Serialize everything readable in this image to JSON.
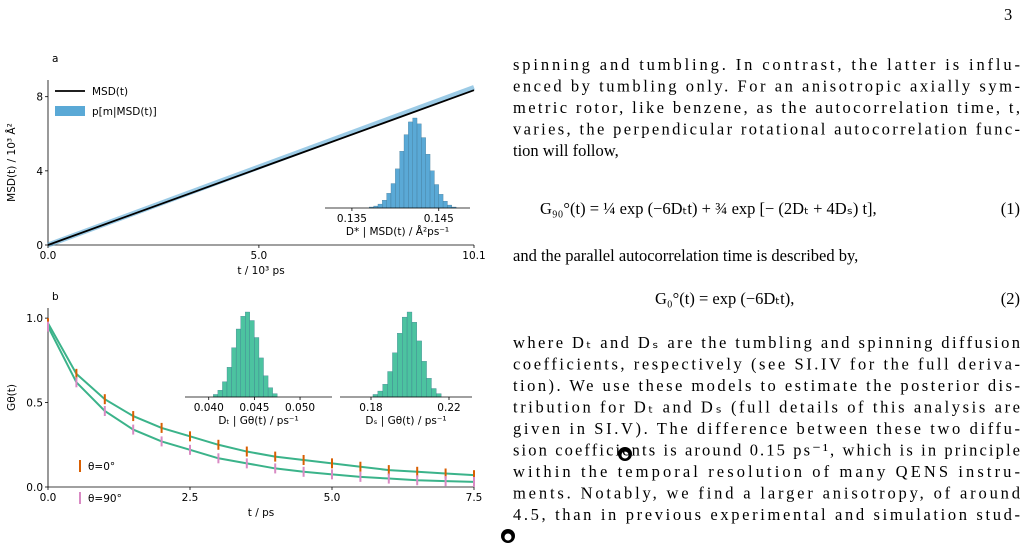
{
  "page_number": "3",
  "chart_data": [
    {
      "type": "line",
      "panel_label": "a",
      "xlabel": "t / 10³ ps",
      "ylabel": "MSD(t) / 10³ Å²",
      "x": [
        0,
        10.1
      ],
      "series": [
        {
          "name": "MSD(t)",
          "color": "#000000",
          "style": "line",
          "values": [
            0,
            8.35
          ]
        },
        {
          "name": "p[m|MSD(t)]",
          "color": "#5aa9d6",
          "style": "band",
          "values": [
            0,
            8.5
          ]
        }
      ],
      "xlim": [
        0,
        10.1
      ],
      "ylim": [
        0,
        8.9
      ],
      "xticks": [
        {
          "value": 0,
          "label": "0.0"
        },
        {
          "value": 5,
          "label": "5.0"
        },
        10.1
      ],
      "yticks": [
        0,
        4,
        8
      ],
      "insets": [
        {
          "type": "histogram",
          "xlabel": "D* | MSD(t) / Å²ps⁻¹",
          "color": "#5aa9d6",
          "xlim": [
            0.1319,
            0.1486
          ],
          "xticks": [
            0.135,
            0.145
          ],
          "bins": [
            0.137,
            0.1375,
            0.138,
            0.1385,
            0.139,
            0.1395,
            0.14,
            0.1405,
            0.141,
            0.1415,
            0.142,
            0.1425,
            0.143,
            0.1435,
            0.144,
            0.1445,
            0.145,
            0.1455,
            0.146,
            0.1465,
            0.147
          ],
          "counts": [
            1,
            2,
            4,
            8,
            15,
            25,
            40,
            58,
            75,
            88,
            92,
            86,
            72,
            55,
            38,
            24,
            14,
            7,
            3,
            1
          ]
        }
      ]
    },
    {
      "type": "line",
      "panel_label": "b",
      "xlabel": "t / ps",
      "ylabel": "Gθ(t)",
      "fit_color": "#3bb38a",
      "x": [
        0,
        0.5,
        1,
        1.5,
        2,
        2.5,
        3,
        3.5,
        4,
        4.5,
        5,
        5.5,
        6,
        6.5,
        7,
        7.5
      ],
      "series": [
        {
          "name": "θ=0°",
          "color": "#d95f02",
          "values": [
            0.97,
            0.67,
            0.52,
            0.42,
            0.35,
            0.3,
            0.25,
            0.21,
            0.18,
            0.16,
            0.14,
            0.12,
            0.1,
            0.09,
            0.08,
            0.07
          ]
        },
        {
          "name": "θ=90°",
          "color": "#d98ac4",
          "values": [
            0.95,
            0.62,
            0.45,
            0.34,
            0.27,
            0.22,
            0.17,
            0.14,
            0.11,
            0.09,
            0.075,
            0.06,
            0.05,
            0.04,
            0.035,
            0.03
          ]
        }
      ],
      "xlim": [
        0,
        7.5
      ],
      "ylim": [
        0,
        1.06
      ],
      "xticks": [
        {
          "value": 0,
          "label": "0.0"
        },
        2.5,
        {
          "value": 5,
          "label": "5.0"
        },
        7.5
      ],
      "yticks": [
        {
          "value": 0,
          "label": "0.0"
        },
        0.5,
        {
          "value": 1,
          "label": "1.0"
        }
      ],
      "insets": [
        {
          "type": "histogram",
          "xlabel": "Dₜ | Gθ(t) / ps⁻¹",
          "color": "#4cc3a0",
          "xlim": [
            0.0374,
            0.0535
          ],
          "xticks": [
            {
              "value": 0.04,
              "label": "0.040"
            },
            0.045,
            {
              "value": 0.05,
              "label": "0.050"
            }
          ],
          "bins": [
            0.0405,
            0.041,
            0.0415,
            0.042,
            0.0425,
            0.043,
            0.0435,
            0.044,
            0.0445,
            0.045,
            0.0455,
            0.046,
            0.0465,
            0.047,
            0.0475
          ],
          "counts": [
            3,
            8,
            18,
            35,
            58,
            80,
            95,
            100,
            90,
            70,
            46,
            25,
            11,
            4
          ]
        },
        {
          "type": "histogram",
          "xlabel": "Dₛ | Gθ(t) / ps⁻¹",
          "color": "#4cc3a0",
          "xlim": [
            0.1641,
            0.2318
          ],
          "xticks": [
            0.18,
            0.22
          ],
          "bins": [
            0.181,
            0.1835,
            0.186,
            0.1885,
            0.191,
            0.1935,
            0.196,
            0.1985,
            0.201,
            0.2035,
            0.206,
            0.2085,
            0.211,
            0.2135,
            0.216
          ],
          "counts": [
            3,
            7,
            15,
            30,
            52,
            75,
            94,
            100,
            88,
            66,
            42,
            22,
            10,
            4
          ]
        }
      ]
    }
  ],
  "text": {
    "paragraph_1": [
      "spinning and tumbling. In contrast, the latter is influ-",
      "enced by tumbling only. For an anisotropic axially sym-",
      "metric rotor, like benzene, as the autocorrelation time, t,",
      "varies, the perpendicular rotational autocorrelation func-",
      "tion will follow,"
    ],
    "equation_1": {
      "text": "G₉₀°(t) = ¼ exp (−6Dₜt) + ¾ exp [− (2Dₜ + 4Dₛ) t],",
      "number": "(1)"
    },
    "paragraph_2": [
      "and the parallel autocorrelation time is described by,"
    ],
    "equation_2": {
      "text": "G₀°(t) = exp (−6Dₜt),",
      "number": "(2)"
    },
    "paragraph_3": [
      "where Dₜ and Dₛ are the tumbling and spinning diffusion",
      "coefficients, respectively (see SI.IV for the full deriva-",
      "tion). We use these models to estimate the posterior dis-",
      "tribution for Dₜ and Dₛ (full details of this analysis are",
      "given in SI.V). The difference between these two diffu-",
      "sion coefficients is around 0.15 ps⁻¹, which is in principle",
      "within the temporal resolution of many QENS instru-",
      "ments. Notably, we find a larger anisotropy, of around",
      "4.5, than in previous experimental and simulation stud-"
    ]
  }
}
